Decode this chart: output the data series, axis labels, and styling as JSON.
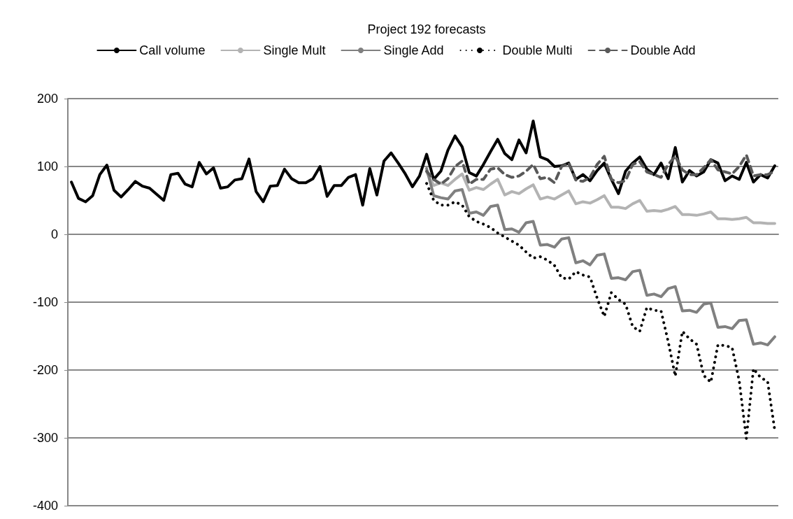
{
  "chart_data": {
    "type": "line",
    "title": "Project 192 forecasts",
    "categories": [
      null,
      null,
      null,
      null,
      null,
      null,
      null,
      null,
      null,
      null,
      null,
      null,
      null,
      null,
      null,
      null,
      null,
      null,
      null,
      null,
      null,
      null,
      null,
      null,
      null,
      null,
      null,
      null,
      null,
      null,
      null,
      null,
      null,
      null,
      null,
      null,
      null,
      null,
      null,
      null,
      null,
      null,
      null,
      null,
      null,
      null,
      null,
      null,
      null,
      null,
      null,
      null,
      null,
      null,
      null,
      null,
      null,
      null,
      null,
      null,
      null,
      null,
      null,
      null,
      null,
      null,
      null,
      null,
      null,
      null,
      null,
      null,
      null,
      null,
      null,
      null,
      null,
      null,
      null,
      null,
      null,
      null,
      null,
      null,
      null,
      null,
      null,
      null,
      null,
      null,
      null,
      null,
      null,
      null,
      null,
      null,
      null,
      null,
      null,
      null
    ],
    "series": [
      {
        "name": "Call volume",
        "color": "#000000",
        "line_style": "solid",
        "values": [
          77,
          53,
          48,
          57,
          88,
          102,
          65,
          55,
          66,
          78,
          71,
          68,
          59,
          50,
          88,
          90,
          74,
          70,
          106,
          89,
          98,
          68,
          70,
          80,
          82,
          111,
          63,
          48,
          71,
          72,
          96,
          82,
          76,
          76,
          82,
          100,
          56,
          72,
          72,
          84,
          88,
          43,
          97,
          58,
          108,
          120,
          105,
          89,
          70,
          86,
          118,
          81,
          93,
          124,
          145,
          129,
          91,
          86,
          103,
          122,
          140,
          119,
          110,
          139,
          120,
          167,
          114,
          110,
          100,
          101,
          105,
          81,
          88,
          79,
          94,
          105,
          81,
          60,
          93,
          105,
          114,
          96,
          88,
          105,
          82,
          128,
          77,
          94,
          86,
          92,
          110,
          105,
          79,
          86,
          81,
          106,
          77,
          88,
          83,
          101
        ]
      },
      {
        "name": "Single Mult",
        "color": "#b3b3b3",
        "line_style": "solid",
        "values": [
          null,
          null,
          null,
          null,
          null,
          null,
          null,
          null,
          null,
          null,
          null,
          null,
          null,
          null,
          null,
          null,
          null,
          null,
          null,
          null,
          null,
          null,
          null,
          null,
          null,
          null,
          null,
          null,
          null,
          null,
          null,
          null,
          null,
          null,
          null,
          null,
          null,
          null,
          null,
          null,
          null,
          null,
          null,
          null,
          null,
          null,
          null,
          null,
          null,
          null,
          92,
          72,
          76,
          72,
          81,
          89,
          65,
          69,
          66,
          74,
          81,
          58,
          63,
          60,
          67,
          73,
          52,
          55,
          52,
          58,
          64,
          45,
          48,
          46,
          51,
          57,
          40,
          40,
          38,
          45,
          50,
          34,
          35,
          34,
          37,
          41,
          29,
          29,
          28,
          30,
          33,
          23,
          23,
          22,
          23,
          25,
          17,
          17,
          16,
          16
        ]
      },
      {
        "name": "Single Add",
        "color": "#808080",
        "line_style": "solid",
        "values": [
          null,
          null,
          null,
          null,
          null,
          null,
          null,
          null,
          null,
          null,
          null,
          null,
          null,
          null,
          null,
          null,
          null,
          null,
          null,
          null,
          null,
          null,
          null,
          null,
          null,
          null,
          null,
          null,
          null,
          null,
          null,
          null,
          null,
          null,
          null,
          null,
          null,
          null,
          null,
          null,
          null,
          null,
          null,
          null,
          null,
          null,
          null,
          null,
          null,
          null,
          97,
          57,
          54,
          52,
          64,
          66,
          31,
          33,
          28,
          41,
          43,
          7,
          8,
          3,
          17,
          19,
          -16,
          -15,
          -19,
          -7,
          -5,
          -42,
          -39,
          -45,
          -31,
          -29,
          -65,
          -64,
          -67,
          -55,
          -53,
          -90,
          -88,
          -92,
          -80,
          -77,
          -113,
          -112,
          -115,
          -103,
          -101,
          -137,
          -136,
          -139,
          -127,
          -126,
          -162,
          -160,
          -163,
          -151
        ]
      },
      {
        "name": "Double Multi",
        "color": "#000000",
        "line_style": "dotted",
        "values": [
          null,
          null,
          null,
          null,
          null,
          null,
          null,
          null,
          null,
          null,
          null,
          null,
          null,
          null,
          null,
          null,
          null,
          null,
          null,
          null,
          null,
          null,
          null,
          null,
          null,
          null,
          null,
          null,
          null,
          null,
          null,
          null,
          null,
          null,
          null,
          null,
          null,
          null,
          null,
          null,
          null,
          null,
          null,
          null,
          null,
          null,
          null,
          null,
          null,
          null,
          75,
          50,
          43,
          43,
          48,
          43,
          26,
          19,
          15,
          10,
          2,
          -4,
          -10,
          -16,
          -26,
          -35,
          -33,
          -38,
          -46,
          -64,
          -66,
          -55,
          -60,
          -63,
          -94,
          -121,
          -86,
          -96,
          -103,
          -136,
          -143,
          -108,
          -112,
          -113,
          -158,
          -209,
          -143,
          -154,
          -162,
          -208,
          -218,
          -163,
          -164,
          -167,
          -216,
          -301,
          -198,
          -211,
          -217,
          -289
        ]
      },
      {
        "name": "Double Add",
        "color": "#595959",
        "line_style": "dashed",
        "values": [
          null,
          null,
          null,
          null,
          null,
          null,
          null,
          null,
          null,
          null,
          null,
          null,
          null,
          null,
          null,
          null,
          null,
          null,
          null,
          null,
          null,
          null,
          null,
          null,
          null,
          null,
          null,
          null,
          null,
          null,
          null,
          null,
          null,
          null,
          null,
          null,
          null,
          null,
          null,
          null,
          null,
          null,
          null,
          null,
          null,
          null,
          null,
          null,
          null,
          null,
          93,
          81,
          74,
          82,
          100,
          108,
          74,
          81,
          81,
          96,
          98,
          88,
          84,
          86,
          93,
          103,
          82,
          84,
          76,
          100,
          105,
          80,
          78,
          84,
          103,
          115,
          81,
          76,
          79,
          103,
          107,
          92,
          88,
          84,
          103,
          115,
          95,
          88,
          88,
          98,
          110,
          95,
          92,
          89,
          100,
          117,
          86,
          88,
          88,
          93
        ]
      }
    ],
    "ylim": [
      -400,
      200
    ],
    "yticks": [
      -400,
      -300,
      -200,
      -100,
      0,
      100,
      200
    ],
    "grid": "y",
    "legend": "top",
    "marker": "none",
    "tick_labels": "y"
  }
}
